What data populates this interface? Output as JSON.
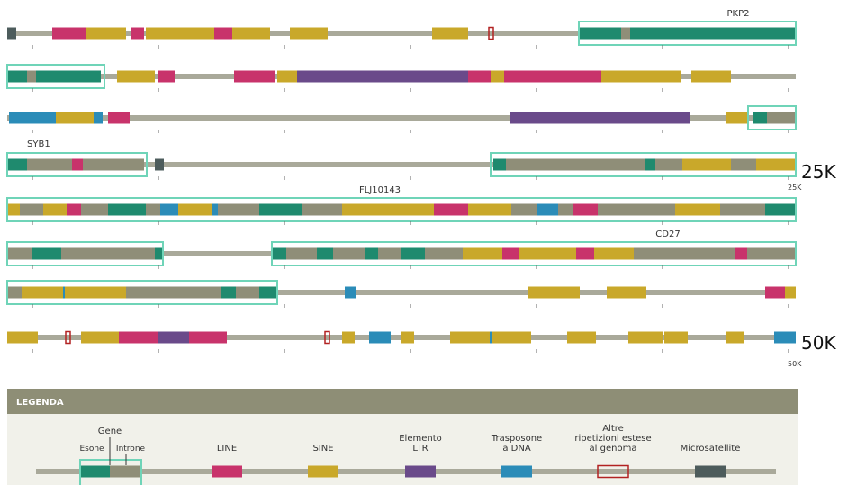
{
  "genes": [
    "PKP2",
    "SYB1",
    "FLJ10143",
    "CD27"
  ],
  "markers": [
    {
      "big": "25K",
      "small": "25K"
    },
    {
      "big": "50K",
      "small": "50K"
    }
  ],
  "legend": {
    "title": "LEGENDA",
    "gene": "Gene",
    "exon": "Esone",
    "intron": "Introne",
    "items": [
      [
        "LINE"
      ],
      [
        "SINE"
      ],
      [
        "Elemento",
        "LTR"
      ],
      [
        "Trasposone",
        "a DNA"
      ],
      [
        "Altre",
        "ripetizioni estese",
        "al genoma"
      ],
      [
        "Microsatellite"
      ]
    ]
  }
}
